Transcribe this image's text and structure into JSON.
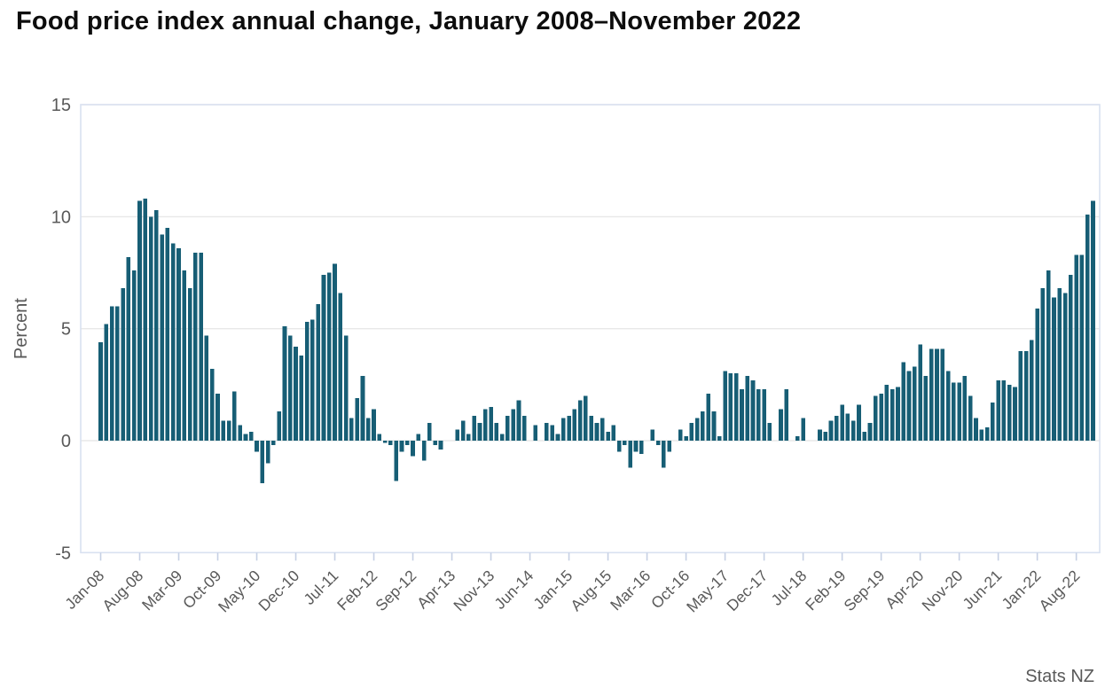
{
  "title": "Food price index annual change, January 2008–November 2022",
  "source_label": "Stats NZ",
  "colors": {
    "bar": "#175e75",
    "grid": "#e8e8e8",
    "plot_border": "#d9e1f0",
    "tick": "#c6d0e4",
    "axis_text": "#595959",
    "title_text": "#0d0d0d",
    "background": "#ffffff"
  },
  "y_axis": {
    "label": "Percent",
    "ticks": [
      15,
      10,
      5,
      0,
      -5
    ],
    "min": -5,
    "max": 15
  },
  "x_axis": {
    "tick_every_months": 7,
    "tick_labels": [
      "Jan-08",
      "Aug-08",
      "Mar-09",
      "Oct-09",
      "May-10",
      "Dec-10",
      "Jul-11",
      "Feb-12",
      "Sep-12",
      "Apr-13",
      "Nov-13",
      "Jun-14",
      "Jan-15",
      "Aug-15",
      "Mar-16",
      "Oct-16",
      "May-17",
      "Dec-17",
      "Jul-18",
      "Feb-19",
      "Sep-19",
      "Apr-20",
      "Nov-20",
      "Jun-21",
      "Jan-22",
      "Aug-22"
    ]
  },
  "chart_data": {
    "type": "bar",
    "title": "Food price index annual change, January 2008–November 2022",
    "xlabel": "",
    "ylabel": "Percent",
    "ylim": [
      -5,
      15
    ],
    "grid": "horizontal",
    "legend": "none",
    "x_start": "Jan-08",
    "x_end": "Nov-22",
    "x_interval": "monthly",
    "values": [
      4.4,
      5.2,
      6.0,
      6.0,
      6.8,
      8.2,
      7.6,
      10.7,
      10.8,
      10.0,
      10.3,
      9.2,
      9.5,
      8.8,
      8.6,
      7.6,
      6.8,
      8.4,
      8.4,
      4.7,
      3.2,
      2.1,
      0.9,
      0.9,
      2.2,
      0.7,
      0.3,
      0.4,
      -0.5,
      -1.9,
      -1.0,
      -0.2,
      1.3,
      5.1,
      4.7,
      4.2,
      3.8,
      5.3,
      5.4,
      6.1,
      7.4,
      7.5,
      7.9,
      6.6,
      4.7,
      1.0,
      1.9,
      2.9,
      1.0,
      1.4,
      0.3,
      -0.1,
      -0.2,
      -1.8,
      -0.5,
      -0.2,
      -0.7,
      0.3,
      -0.9,
      0.8,
      -0.2,
      -0.4,
      0.0,
      0.0,
      0.5,
      0.9,
      0.3,
      1.1,
      0.8,
      1.4,
      1.5,
      0.8,
      0.3,
      1.1,
      1.4,
      1.8,
      1.1,
      0.0,
      0.7,
      0.0,
      0.8,
      0.7,
      0.3,
      1.0,
      1.1,
      1.4,
      1.8,
      2.0,
      1.1,
      0.8,
      1.0,
      0.4,
      0.7,
      -0.5,
      -0.2,
      -1.2,
      -0.5,
      -0.6,
      0.0,
      0.5,
      -0.2,
      -1.2,
      -0.5,
      0.0,
      0.5,
      0.2,
      0.8,
      1.0,
      1.3,
      2.1,
      1.3,
      0.2,
      3.1,
      3.0,
      3.0,
      2.3,
      2.9,
      2.7,
      2.3,
      2.3,
      0.8,
      0.0,
      1.4,
      2.3,
      0.0,
      0.2,
      1.0,
      0.0,
      0.0,
      0.5,
      0.4,
      0.9,
      1.1,
      1.6,
      1.2,
      0.9,
      1.6,
      0.4,
      0.8,
      2.0,
      2.1,
      2.5,
      2.3,
      2.4,
      3.5,
      3.1,
      3.3,
      4.3,
      2.9,
      4.1,
      4.1,
      4.1,
      3.1,
      2.6,
      2.6,
      2.9,
      2.0,
      1.0,
      0.5,
      0.6,
      1.7,
      2.7,
      2.7,
      2.5,
      2.4,
      4.0,
      4.0,
      4.5,
      5.9,
      6.8,
      7.6,
      6.4,
      6.8,
      6.6,
      7.4,
      8.3,
      8.3,
      10.1,
      10.7
    ]
  }
}
